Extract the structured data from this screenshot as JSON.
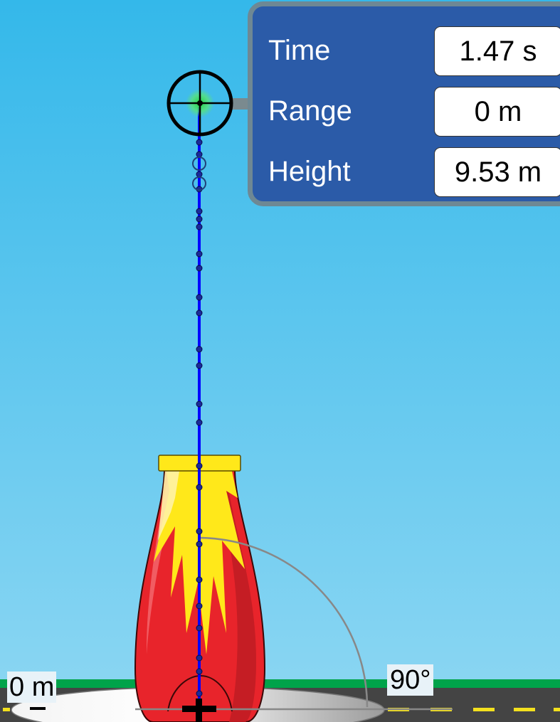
{
  "info_panel": {
    "time_label": "Time",
    "time_value": "1.47 s",
    "range_label": "Range",
    "range_value": "0 m",
    "height_label": "Height",
    "height_value": "9.53 m"
  },
  "cannon_height_label": "0 m",
  "launch_angle_label": "90°",
  "colors": {
    "sky_top": "#34b8ea",
    "sky_bottom": "#8bd6f3",
    "trajectory": "#0000ff",
    "panel": "#2b5ba8",
    "cannon_red": "#e8242b",
    "cannon_yellow": "#ffe81a",
    "grass": "#00a34a",
    "road": "#444444"
  }
}
